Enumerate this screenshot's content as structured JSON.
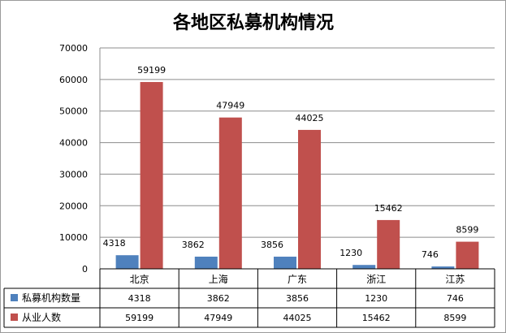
{
  "chart_data": {
    "type": "bar",
    "title": "各地区私募机构情况",
    "categories": [
      "北京",
      "上海",
      "广东",
      "浙江",
      "江苏"
    ],
    "series": [
      {
        "name": "私募机构数量",
        "color": "#4f81bd",
        "values": [
          4318,
          3862,
          3856,
          1230,
          746
        ]
      },
      {
        "name": "从业人数",
        "color": "#c0504d",
        "values": [
          59199,
          47949,
          44025,
          15462,
          8599
        ]
      }
    ],
    "y_ticks": [
      "0",
      "10000",
      "20000",
      "30000",
      "40000",
      "50000",
      "60000",
      "70000"
    ],
    "ylim": [
      0,
      70000
    ],
    "grid": true,
    "legend": "data-table-below"
  }
}
